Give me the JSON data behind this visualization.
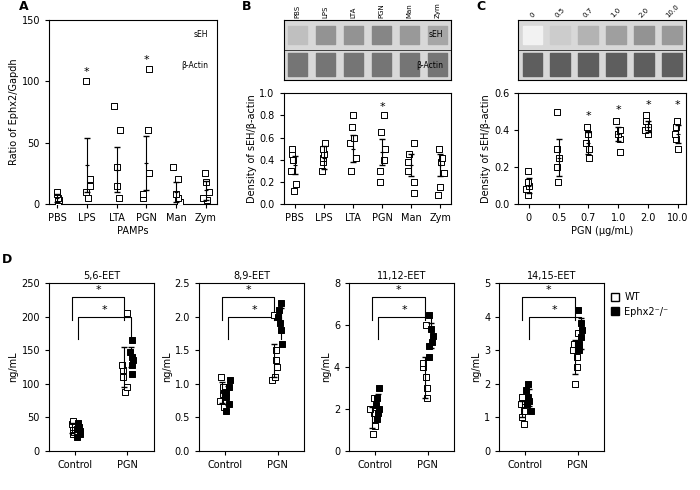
{
  "panel_A": {
    "title": "A",
    "xlabel": "PAMPs",
    "ylabel": "Ratio of Ephx2/Gapdh",
    "ylim": [
      0,
      150
    ],
    "yticks": [
      0,
      50,
      100,
      150
    ],
    "categories": [
      "PBS",
      "LPS",
      "LTA",
      "PGN",
      "Man",
      "Zym"
    ],
    "means": [
      5,
      32,
      28,
      33,
      10,
      11
    ],
    "errors": [
      3,
      22,
      18,
      22,
      8,
      8
    ],
    "scatter_data": {
      "PBS": [
        2,
        3,
        5,
        8,
        10
      ],
      "LPS": [
        5,
        10,
        15,
        20,
        100
      ],
      "LTA": [
        5,
        15,
        30,
        60,
        80
      ],
      "PGN": [
        5,
        8,
        25,
        60,
        110
      ],
      "Man": [
        2,
        5,
        8,
        20,
        30
      ],
      "Zym": [
        3,
        5,
        10,
        18,
        25
      ]
    },
    "star_positions": {
      "LPS": 100,
      "PGN": 110
    },
    "significance_labels": {
      "LPS": "*",
      "PGN": "*"
    }
  },
  "panel_B_scatter": {
    "title": "B",
    "ylabel": "Density of sEH/β-actin",
    "ylim": [
      0,
      1.0
    ],
    "yticks": [
      0.0,
      0.2,
      0.4,
      0.6,
      0.8,
      1.0
    ],
    "categories": [
      "PBS",
      "LPS",
      "LTA",
      "PGN",
      "Man",
      "Zym"
    ],
    "means": [
      0.35,
      0.42,
      0.5,
      0.47,
      0.35,
      0.35
    ],
    "errors": [
      0.08,
      0.1,
      0.12,
      0.12,
      0.1,
      0.1
    ],
    "scatter_data": {
      "PBS": [
        0.12,
        0.18,
        0.3,
        0.4,
        0.45,
        0.5
      ],
      "LPS": [
        0.3,
        0.38,
        0.42,
        0.45,
        0.5,
        0.55
      ],
      "LTA": [
        0.3,
        0.42,
        0.55,
        0.6,
        0.7,
        0.8
      ],
      "PGN": [
        0.2,
        0.3,
        0.4,
        0.5,
        0.65,
        0.8
      ],
      "Man": [
        0.1,
        0.2,
        0.3,
        0.38,
        0.45,
        0.55
      ],
      "Zym": [
        0.08,
        0.15,
        0.28,
        0.38,
        0.42,
        0.5
      ]
    },
    "star_positions": {
      "PGN": 0.82
    },
    "significance_labels": {
      "PGN": "*"
    }
  },
  "panel_C_scatter": {
    "title": "C",
    "xlabel": "PGN (μg/mL)",
    "ylabel": "Density of sEH/β-actin",
    "ylim": [
      0.0,
      0.6
    ],
    "yticks": [
      0.0,
      0.2,
      0.4,
      0.6
    ],
    "categories": [
      "0",
      "0.5",
      "0.7",
      "1.0",
      "2.0",
      "10.0"
    ],
    "means": [
      0.1,
      0.25,
      0.33,
      0.38,
      0.42,
      0.38
    ],
    "errors": [
      0.04,
      0.1,
      0.06,
      0.04,
      0.03,
      0.05
    ],
    "scatter_data": {
      "0": [
        0.05,
        0.08,
        0.1,
        0.12,
        0.18
      ],
      "0.5": [
        0.12,
        0.2,
        0.25,
        0.3,
        0.5
      ],
      "0.7": [
        0.25,
        0.3,
        0.33,
        0.38,
        0.42
      ],
      "1.0": [
        0.28,
        0.35,
        0.38,
        0.4,
        0.45
      ],
      "2.0": [
        0.38,
        0.4,
        0.42,
        0.45,
        0.48
      ],
      "10.0": [
        0.3,
        0.35,
        0.38,
        0.42,
        0.45
      ]
    },
    "star_positions": {
      "0.7": 0.45,
      "1.0": 0.48,
      "2.0": 0.51,
      "10.0": 0.51
    },
    "significance_labels": {
      "0.7": "*",
      "1.0": "*",
      "2.0": "*",
      "10.0": "*"
    }
  },
  "panel_D": {
    "title": "D",
    "subpanels": [
      {
        "title": "5,6-EET",
        "ylabel": "ng/mL",
        "ylim": [
          0,
          250
        ],
        "yticks": [
          0,
          50,
          100,
          150,
          200,
          250
        ],
        "WT_control": [
          25,
          28,
          32,
          35,
          40,
          45
        ],
        "KO_control": [
          20,
          25,
          30,
          32,
          35,
          42
        ],
        "WT_PGN": [
          88,
          95,
          110,
          120,
          128,
          205
        ],
        "KO_PGN": [
          115,
          128,
          135,
          140,
          148,
          165
        ],
        "WT_control_mean": 34,
        "WT_control_err": 8,
        "KO_control_mean": 30,
        "KO_control_err": 7,
        "WT_PGN_mean": 125,
        "WT_PGN_err": 30,
        "KO_PGN_mean": 140,
        "KO_PGN_err": 15
      },
      {
        "title": "8,9-EET",
        "ylabel": "ng/mL",
        "ylim": [
          0.0,
          2.5
        ],
        "yticks": [
          0.0,
          0.5,
          1.0,
          1.5,
          2.0,
          2.5
        ],
        "WT_control": [
          0.65,
          0.75,
          0.85,
          0.9,
          0.95,
          1.1
        ],
        "KO_control": [
          0.6,
          0.7,
          0.8,
          0.88,
          0.95,
          1.05
        ],
        "WT_PGN": [
          1.05,
          1.1,
          1.25,
          1.35,
          1.5,
          2.02
        ],
        "KO_PGN": [
          1.6,
          1.8,
          1.9,
          2.0,
          2.1,
          2.2
        ],
        "WT_control_mean": 0.87,
        "WT_control_err": 0.15,
        "KO_control_mean": 0.83,
        "KO_control_err": 0.14,
        "WT_PGN_mean": 1.35,
        "WT_PGN_err": 0.25,
        "KO_PGN_mean": 1.95,
        "KO_PGN_err": 0.18
      },
      {
        "title": "11,12-EET",
        "ylabel": "ng/mL",
        "ylim": [
          0,
          8
        ],
        "yticks": [
          0,
          2,
          4,
          6,
          8
        ],
        "WT_control": [
          0.8,
          1.2,
          1.5,
          1.8,
          2.0,
          2.5
        ],
        "KO_control": [
          1.5,
          1.8,
          2.0,
          2.2,
          2.5,
          3.0
        ],
        "WT_PGN": [
          2.5,
          3.0,
          3.5,
          4.0,
          4.2,
          6.0
        ],
        "KO_PGN": [
          4.5,
          5.0,
          5.2,
          5.5,
          5.8,
          6.5
        ],
        "WT_control_mean": 1.6,
        "WT_control_err": 0.5,
        "KO_control_mean": 2.2,
        "KO_control_err": 0.5,
        "WT_PGN_mean": 3.5,
        "WT_PGN_err": 1.0,
        "KO_PGN_mean": 5.5,
        "KO_PGN_err": 0.6
      },
      {
        "title": "14,15-EET",
        "ylabel": "ng/mL",
        "ylim": [
          0,
          5
        ],
        "yticks": [
          0,
          1,
          2,
          3,
          4,
          5
        ],
        "WT_control": [
          0.8,
          1.0,
          1.2,
          1.4,
          1.5,
          1.6
        ],
        "KO_control": [
          1.2,
          1.4,
          1.5,
          1.6,
          1.8,
          2.0
        ],
        "WT_PGN": [
          2.0,
          2.5,
          2.8,
          3.0,
          3.2,
          3.5
        ],
        "KO_PGN": [
          3.0,
          3.2,
          3.4,
          3.6,
          3.8,
          4.2
        ],
        "WT_control_mean": 1.25,
        "WT_control_err": 0.25,
        "KO_control_mean": 1.58,
        "KO_control_err": 0.25,
        "WT_PGN_mean": 2.8,
        "WT_PGN_err": 0.5,
        "KO_PGN_mean": 3.5,
        "KO_PGN_err": 0.45
      }
    ]
  },
  "colors": {
    "open_square": "white",
    "filled_square": "black",
    "edge": "black",
    "error_bar": "black",
    "line": "black"
  },
  "fontsize": 7,
  "label_fontsize": 8,
  "title_fontsize": 9
}
